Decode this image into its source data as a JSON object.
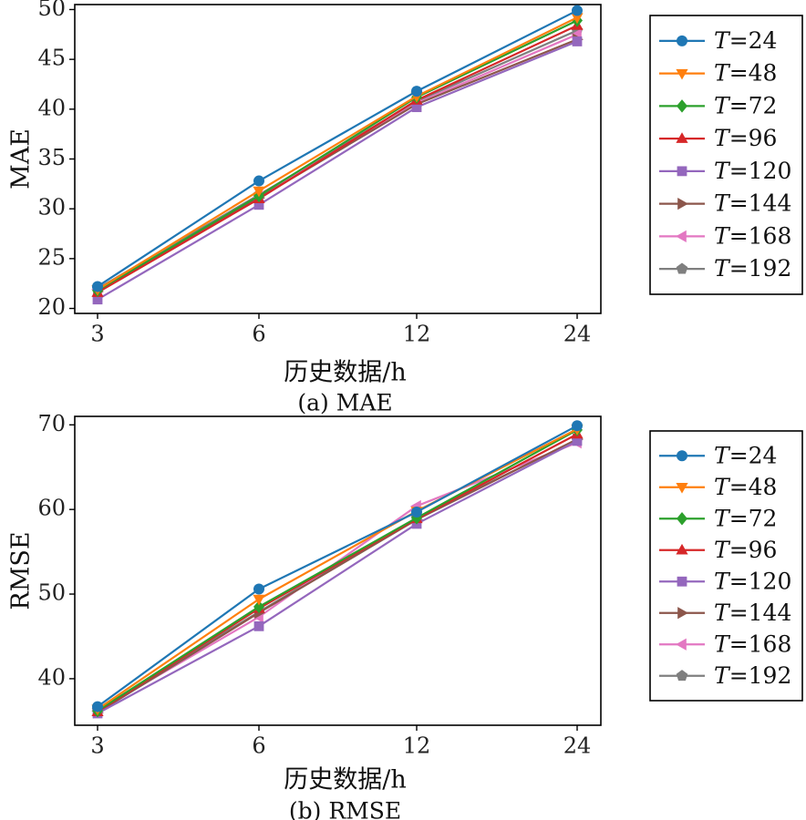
{
  "chart_data": [
    {
      "type": "line",
      "caption": "(a) MAE",
      "xlabel": "历史数据/h",
      "ylabel": "MAE",
      "categories": [
        "3",
        "6",
        "12",
        "24"
      ],
      "ylim": [
        19.5,
        50.5
      ],
      "yticks": [
        20,
        25,
        30,
        35,
        40,
        45,
        50
      ],
      "grid": false,
      "legend_position": "right",
      "series": [
        {
          "name": "T=24",
          "color": "#1f77b4",
          "marker": "circle",
          "values": [
            22.2,
            32.8,
            41.8,
            49.9
          ]
        },
        {
          "name": "T=48",
          "color": "#ff7f0e",
          "marker": "triangle-down",
          "values": [
            21.9,
            31.8,
            41.3,
            49.2
          ]
        },
        {
          "name": "T=72",
          "color": "#2ca02c",
          "marker": "diamond",
          "values": [
            21.8,
            31.3,
            41.2,
            48.9
          ]
        },
        {
          "name": "T=96",
          "color": "#d62728",
          "marker": "triangle-up",
          "values": [
            21.6,
            31.0,
            40.9,
            48.4
          ]
        },
        {
          "name": "T=120",
          "color": "#9467bd",
          "marker": "square",
          "values": [
            20.9,
            30.4,
            40.2,
            46.8
          ]
        },
        {
          "name": "T=144",
          "color": "#8c564b",
          "marker": "triangle-right",
          "values": [
            21.7,
            31.1,
            40.5,
            47.0
          ]
        },
        {
          "name": "T=168",
          "color": "#e377c2",
          "marker": "triangle-left",
          "values": [
            21.9,
            31.2,
            40.6,
            47.5
          ]
        },
        {
          "name": "T=192",
          "color": "#7f7f7f",
          "marker": "pentagon",
          "values": [
            22.0,
            31.4,
            40.8,
            47.9
          ]
        }
      ]
    },
    {
      "type": "line",
      "caption": "(b) RMSE",
      "xlabel": "历史数据/h",
      "ylabel": "RMSE",
      "categories": [
        "3",
        "6",
        "12",
        "24"
      ],
      "ylim": [
        34.5,
        71
      ],
      "yticks": [
        40,
        50,
        60,
        70
      ],
      "grid": false,
      "legend_position": "right",
      "series": [
        {
          "name": "T=24",
          "color": "#1f77b4",
          "marker": "circle",
          "values": [
            36.7,
            50.6,
            59.7,
            69.9
          ]
        },
        {
          "name": "T=48",
          "color": "#ff7f0e",
          "marker": "triangle-down",
          "values": [
            36.4,
            49.4,
            59.8,
            69.5
          ]
        },
        {
          "name": "T=72",
          "color": "#2ca02c",
          "marker": "diamond",
          "values": [
            36.2,
            48.5,
            59.0,
            69.4
          ]
        },
        {
          "name": "T=96",
          "color": "#d62728",
          "marker": "triangle-up",
          "values": [
            36.1,
            48.3,
            58.9,
            68.9
          ]
        },
        {
          "name": "T=120",
          "color": "#9467bd",
          "marker": "square",
          "values": [
            35.9,
            46.2,
            58.3,
            68.1
          ]
        },
        {
          "name": "T=144",
          "color": "#8c564b",
          "marker": "triangle-right",
          "values": [
            36.0,
            47.8,
            58.8,
            68.3
          ]
        },
        {
          "name": "T=168",
          "color": "#e377c2",
          "marker": "triangle-left",
          "values": [
            36.2,
            47.3,
            60.4,
            67.9
          ]
        },
        {
          "name": "T=192",
          "color": "#7f7f7f",
          "marker": "pentagon",
          "values": [
            36.3,
            47.9,
            59.0,
            68.2
          ]
        }
      ]
    }
  ]
}
